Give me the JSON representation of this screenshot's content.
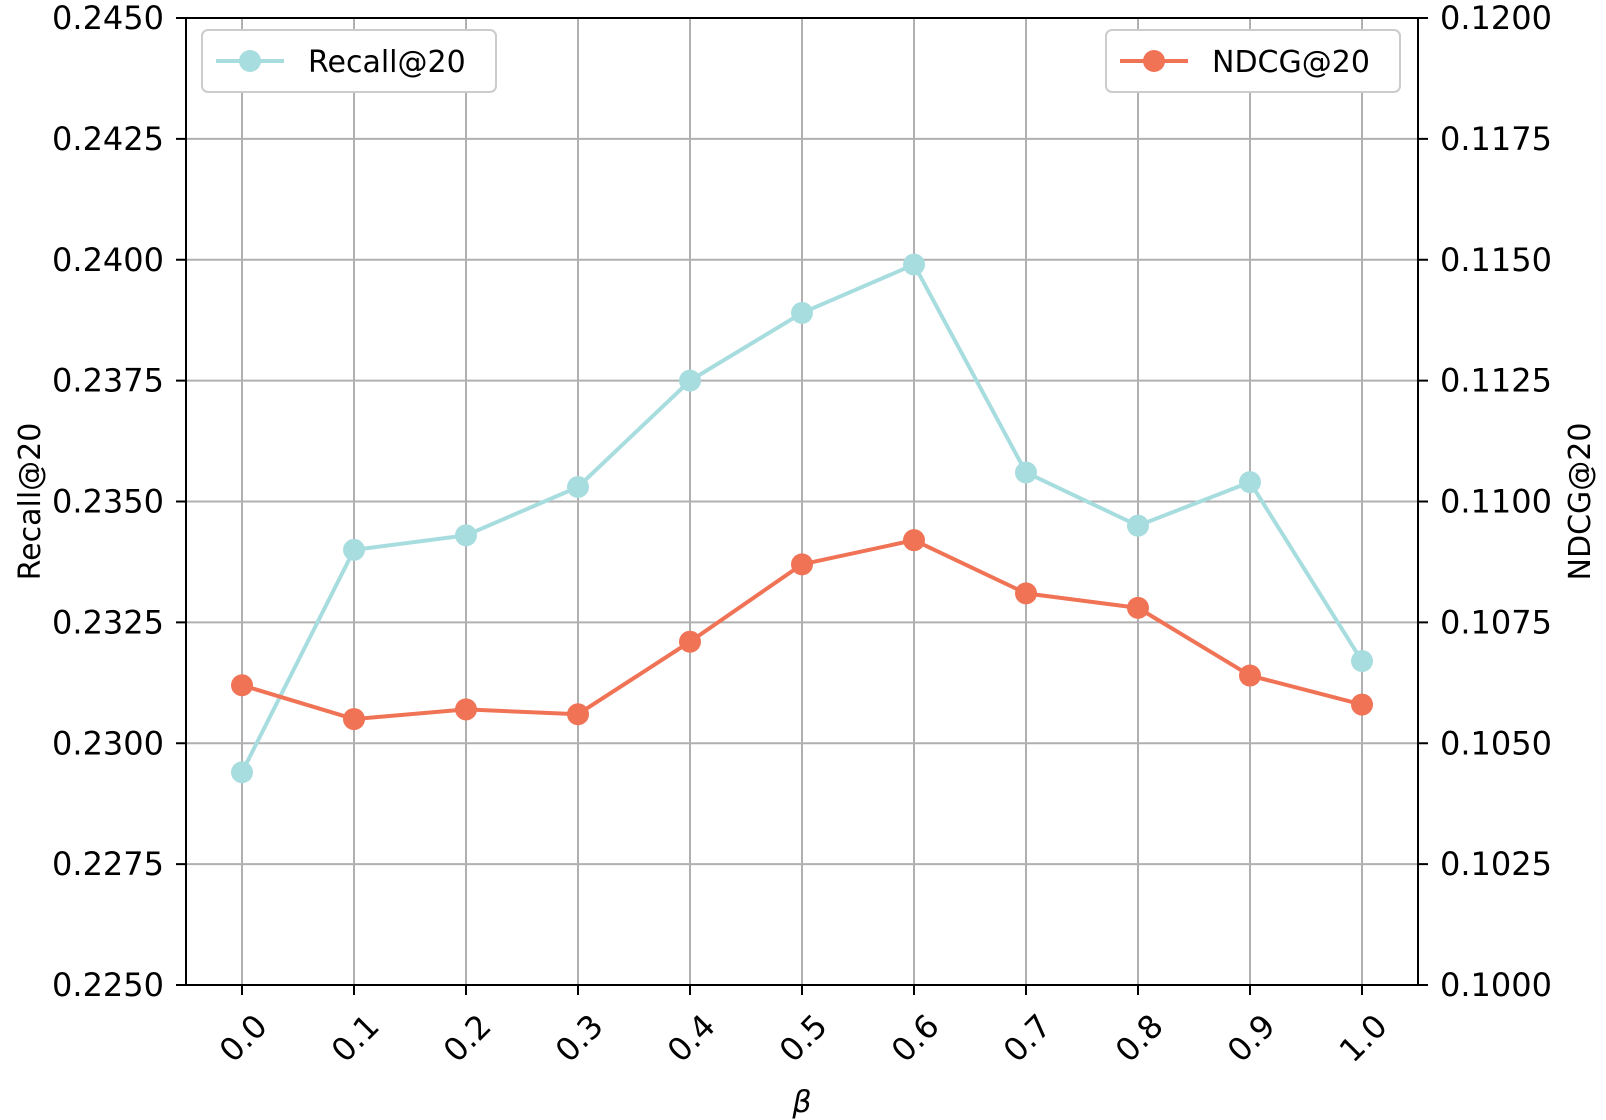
{
  "chart_data": {
    "type": "line",
    "x": [
      0.0,
      0.1,
      0.2,
      0.3,
      0.4,
      0.5,
      0.6,
      0.7,
      0.8,
      0.9,
      1.0
    ],
    "x_tick_labels": [
      "0.0",
      "0.1",
      "0.2",
      "0.3",
      "0.4",
      "0.5",
      "0.6",
      "0.7",
      "0.8",
      "0.9",
      "1.0"
    ],
    "xlabel": "β",
    "ylabel_left": "Recall@20",
    "ylabel_right": "NDCG@20",
    "ylim_left": [
      0.225,
      0.245
    ],
    "ylim_right": [
      0.1,
      0.12
    ],
    "left_ticks": [
      "0.2250",
      "0.2275",
      "0.2300",
      "0.2325",
      "0.2350",
      "0.2375",
      "0.2400",
      "0.2425",
      "0.2450"
    ],
    "right_ticks": [
      "0.1000",
      "0.1025",
      "0.1050",
      "0.1075",
      "0.1100",
      "0.1125",
      "0.1150",
      "0.1175",
      "0.1200"
    ],
    "grid": true,
    "series": [
      {
        "name": "Recall@20",
        "axis": "left",
        "color": "#A8DDE0",
        "legend_position": "top-left",
        "values": [
          0.2294,
          0.234,
          0.2343,
          0.2353,
          0.2375,
          0.2389,
          0.2399,
          0.2356,
          0.2345,
          0.2354,
          0.2317
        ]
      },
      {
        "name": "NDCG@20",
        "axis": "right",
        "color": "#F07355",
        "legend_position": "top-right",
        "values": [
          0.1062,
          0.1055,
          0.1057,
          0.1056,
          0.1071,
          0.1087,
          0.1092,
          0.1081,
          0.1078,
          0.1064,
          0.1058
        ]
      }
    ]
  }
}
